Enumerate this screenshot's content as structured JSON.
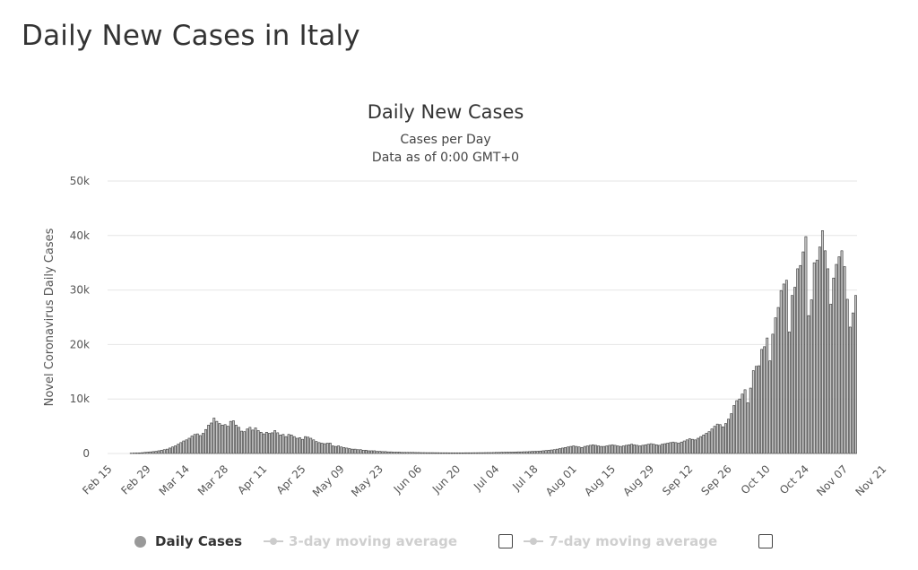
{
  "page": {
    "heading": "Daily New Cases in Italy"
  },
  "chart_data": {
    "type": "bar",
    "title": "Daily New Cases",
    "subtitle": "Cases per Day",
    "subtitle2": "Data as of 0:00 GMT+0",
    "ylabel": "Novel Coronavirus Daily Cases",
    "xlabel": "",
    "ylim": [
      0,
      50000
    ],
    "y_ticks": [
      0,
      10000,
      20000,
      30000,
      40000,
      50000
    ],
    "y_tick_labels": [
      "0",
      "10k",
      "20k",
      "30k",
      "40k",
      "50k"
    ],
    "x_ticks": [
      "Feb 15",
      "Feb 29",
      "Mar 14",
      "Mar 28",
      "Apr 11",
      "Apr 25",
      "May 09",
      "May 23",
      "Jun 06",
      "Jun 20",
      "Jul 04",
      "Jul 18",
      "Aug 01",
      "Aug 15",
      "Aug 29",
      "Sep 12",
      "Sep 26",
      "Oct 10",
      "Oct 24",
      "Nov 07",
      "Nov 21"
    ],
    "grid": true,
    "legend_position": "bottom",
    "series": [
      {
        "name": "Daily Cases",
        "start_date": "Feb 15",
        "values": [
          0,
          0,
          0,
          0,
          0,
          0,
          0,
          0,
          60,
          80,
          90,
          100,
          150,
          200,
          250,
          300,
          350,
          400,
          500,
          600,
          700,
          800,
          1000,
          1200,
          1400,
          1700,
          2000,
          2300,
          2500,
          2800,
          3200,
          3500,
          3600,
          3300,
          3700,
          4400,
          5200,
          5600,
          6500,
          5900,
          5500,
          5200,
          5300,
          5000,
          5900,
          6000,
          5200,
          4800,
          4100,
          4000,
          4500,
          4800,
          4300,
          4700,
          4200,
          3900,
          3600,
          3900,
          3700,
          3800,
          4200,
          3800,
          3400,
          3500,
          3100,
          3500,
          3400,
          3100,
          2800,
          2900,
          2600,
          3100,
          3000,
          2800,
          2500,
          2200,
          2000,
          1900,
          1800,
          1900,
          1900,
          1400,
          1300,
          1400,
          1200,
          1100,
          1000,
          900,
          800,
          800,
          700,
          700,
          600,
          600,
          500,
          500,
          500,
          400,
          400,
          350,
          350,
          300,
          300,
          250,
          250,
          250,
          200,
          200,
          200,
          200,
          200,
          180,
          180,
          160,
          160,
          150,
          150,
          150,
          140,
          140,
          130,
          130,
          130,
          120,
          120,
          120,
          120,
          120,
          120,
          130,
          130,
          130,
          140,
          140,
          150,
          150,
          160,
          170,
          170,
          180,
          200,
          200,
          220,
          230,
          250,
          250,
          260,
          280,
          300,
          300,
          320,
          330,
          350,
          380,
          400,
          420,
          450,
          500,
          550,
          600,
          650,
          700,
          800,
          900,
          1000,
          1100,
          1200,
          1300,
          1400,
          1300,
          1200,
          1100,
          1300,
          1400,
          1500,
          1600,
          1500,
          1400,
          1300,
          1300,
          1400,
          1500,
          1600,
          1500,
          1400,
          1300,
          1400,
          1500,
          1600,
          1700,
          1600,
          1500,
          1400,
          1500,
          1600,
          1700,
          1800,
          1700,
          1600,
          1500,
          1700,
          1800,
          1900,
          2000,
          2100,
          2000,
          1900,
          2100,
          2300,
          2500,
          2700,
          2600,
          2500,
          2800,
          3100,
          3400,
          3700,
          4000,
          4500,
          5000,
          5400,
          5300,
          4900,
          5500,
          6300,
          7300,
          8800,
          9700,
          10000,
          10900,
          11700,
          9300,
          12000,
          15200,
          16000,
          16100,
          19100,
          19600,
          21200,
          17000,
          21900,
          24900,
          26800,
          29900,
          31100,
          31800,
          22300,
          29000,
          30500,
          33900,
          34500,
          37000,
          39800,
          25300,
          28200,
          35000,
          35500,
          37900,
          40900,
          37200,
          33900,
          27400,
          32200,
          34700,
          36100,
          37200,
          34300,
          28300,
          23200,
          25800,
          29000
        ]
      }
    ]
  },
  "legend": {
    "daily_cases": "Daily Cases",
    "ma3": "3-day moving average",
    "ma7": "7-day moving average"
  },
  "colors": {
    "bar_fill": "#c8c8c8",
    "bar_stroke": "#333333",
    "grid": "#e6e6e6",
    "legend_active": "#999999",
    "legend_inactive": "#cfcfcf"
  }
}
